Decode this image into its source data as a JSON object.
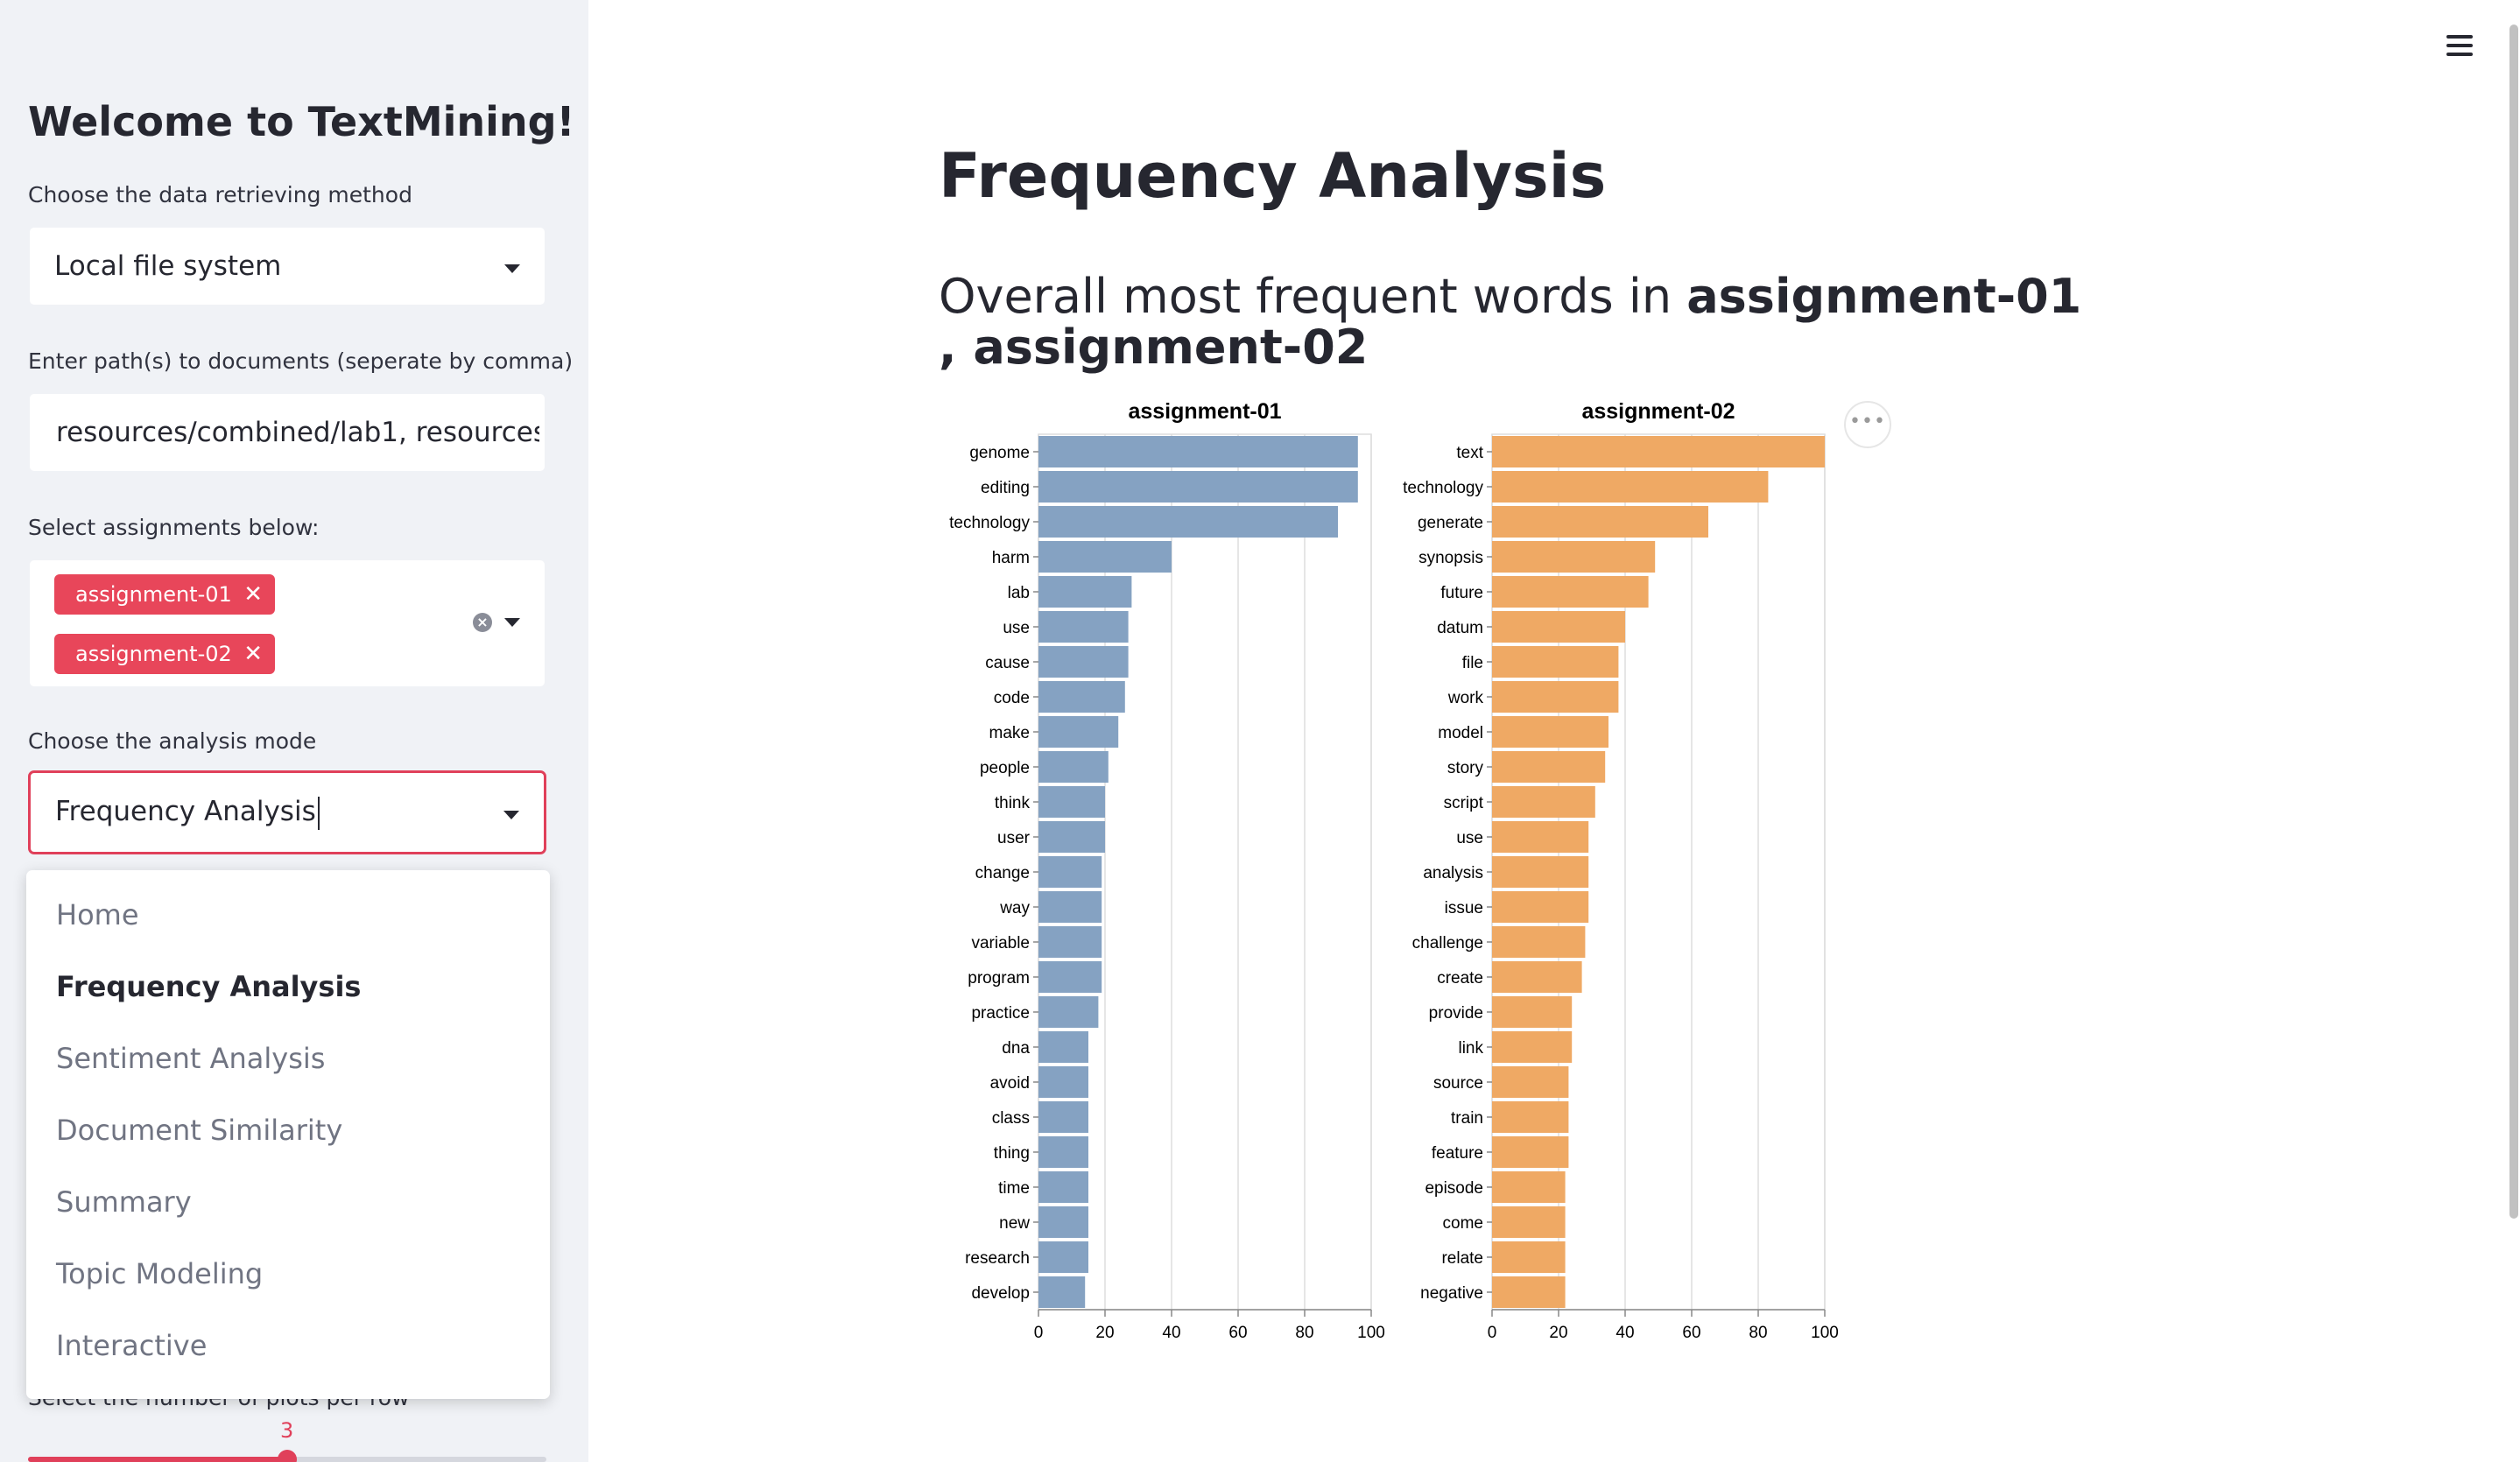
{
  "sidebar": {
    "title": "Welcome to TextMining!",
    "retrieve_label": "Choose the data retrieving method",
    "retrieve_value": "Local file system",
    "path_label": "Enter path(s) to documents (seperate by comma)",
    "path_value": "resources/combined/lab1, resources/combined/lab2",
    "assign_label": "Select assignments below:",
    "assignments": [
      "assignment-01",
      "assignment-02"
    ],
    "remove_glyph": "✕",
    "clear_glyph": "×",
    "mode_label": "Choose the analysis mode",
    "mode_value": "Frequency Analysis",
    "mode_options": [
      "Home",
      "Frequency Analysis",
      "Sentiment Analysis",
      "Document Similarity",
      "Summary",
      "Topic Modeling",
      "Interactive"
    ],
    "plots_label": "Select the number of plots per row",
    "plots_value": "3",
    "plots_fraction": 0.5
  },
  "main": {
    "title": "Frequency Analysis",
    "subtitle_prefix": "Overall most frequent words in ",
    "subtitle_a": "assignment-01",
    "subtitle_sep": " , ",
    "subtitle_b": "assignment-02",
    "more_glyph": "•••"
  },
  "colors": {
    "accent": "#e0405a",
    "bar_blue": "#85a2c2",
    "bar_orange": "#efa964"
  },
  "chart_data": [
    {
      "type": "bar",
      "orientation": "horizontal",
      "title": "assignment-01",
      "color": "#85a2c2",
      "xlim": [
        0,
        100
      ],
      "xticks": [
        0,
        20,
        40,
        60,
        80,
        100
      ],
      "grid": true,
      "categories": [
        "genome",
        "editing",
        "technology",
        "harm",
        "lab",
        "use",
        "cause",
        "code",
        "make",
        "people",
        "think",
        "user",
        "change",
        "way",
        "variable",
        "program",
        "practice",
        "dna",
        "avoid",
        "class",
        "thing",
        "time",
        "new",
        "research",
        "develop"
      ],
      "values": [
        96,
        96,
        90,
        40,
        28,
        27,
        27,
        26,
        24,
        21,
        20,
        20,
        19,
        19,
        19,
        19,
        18,
        15,
        15,
        15,
        15,
        15,
        15,
        15,
        14
      ]
    },
    {
      "type": "bar",
      "orientation": "horizontal",
      "title": "assignment-02",
      "color": "#efa964",
      "xlim": [
        0,
        100
      ],
      "xticks": [
        0,
        20,
        40,
        60,
        80,
        100
      ],
      "grid": true,
      "categories": [
        "text",
        "technology",
        "generate",
        "synopsis",
        "future",
        "datum",
        "file",
        "work",
        "model",
        "story",
        "script",
        "use",
        "analysis",
        "issue",
        "challenge",
        "create",
        "provide",
        "link",
        "source",
        "train",
        "feature",
        "episode",
        "come",
        "relate",
        "negative"
      ],
      "values": [
        100,
        83,
        65,
        49,
        47,
        40,
        38,
        38,
        35,
        34,
        31,
        29,
        29,
        29,
        28,
        27,
        24,
        24,
        23,
        23,
        23,
        22,
        22,
        22,
        22
      ]
    }
  ]
}
